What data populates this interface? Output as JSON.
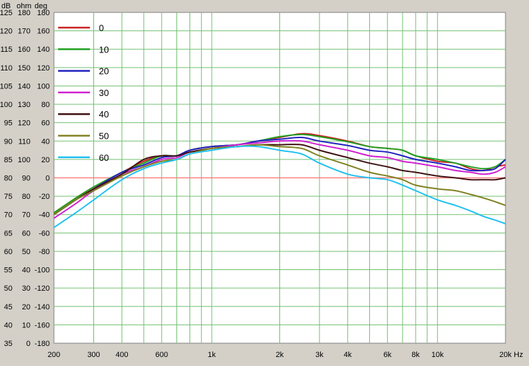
{
  "chart_data": {
    "type": "line",
    "title": "",
    "xscale": "log",
    "xlim": [
      200,
      20000
    ],
    "ylim_db": [
      35,
      125
    ],
    "grid": true,
    "legend_position": "top-left",
    "axis_headers": {
      "db": "dB",
      "ohm": "ohm",
      "deg": "deg"
    },
    "x_unit": "Hz",
    "x_ticks": [
      {
        "value": 200,
        "label": "200"
      },
      {
        "value": 300,
        "label": "300"
      },
      {
        "value": 400,
        "label": "400"
      },
      {
        "value": 600,
        "label": "600"
      },
      {
        "value": 1000,
        "label": "1k"
      },
      {
        "value": 2000,
        "label": "2k"
      },
      {
        "value": 3000,
        "label": "3k"
      },
      {
        "value": 4000,
        "label": "4k"
      },
      {
        "value": 6000,
        "label": "6k"
      },
      {
        "value": 8000,
        "label": "8k"
      },
      {
        "value": 10000,
        "label": "10k"
      },
      {
        "value": 20000,
        "label": "20k"
      }
    ],
    "y_ticks": [
      {
        "db": 125,
        "ohm": "180",
        "deg": "180"
      },
      {
        "db": 120,
        "ohm": "170",
        "deg": "160"
      },
      {
        "db": 115,
        "ohm": "160",
        "deg": "140"
      },
      {
        "db": 110,
        "ohm": "150",
        "deg": "120"
      },
      {
        "db": 105,
        "ohm": "140",
        "deg": "100"
      },
      {
        "db": 100,
        "ohm": "130",
        "deg": "80"
      },
      {
        "db": 95,
        "ohm": "120",
        "deg": "60"
      },
      {
        "db": 90,
        "ohm": "110",
        "deg": "40"
      },
      {
        "db": 85,
        "ohm": "100",
        "deg": "20"
      },
      {
        "db": 80,
        "ohm": "90",
        "deg": "0"
      },
      {
        "db": 75,
        "ohm": "80",
        "deg": "-20"
      },
      {
        "db": 70,
        "ohm": "70",
        "deg": "-40"
      },
      {
        "db": 65,
        "ohm": "60",
        "deg": "-60"
      },
      {
        "db": 60,
        "ohm": "50",
        "deg": "-80"
      },
      {
        "db": 55,
        "ohm": "40",
        "deg": "-100"
      },
      {
        "db": 50,
        "ohm": "30",
        "deg": "-120"
      },
      {
        "db": 45,
        "ohm": "20",
        "deg": "-140"
      },
      {
        "db": 40,
        "ohm": "10",
        "deg": "-160"
      },
      {
        "db": 35,
        "ohm": "0",
        "deg": "-180"
      }
    ],
    "reference_line": {
      "db": 80,
      "color": "#ff8080"
    },
    "series": [
      {
        "name": "0",
        "color": "#cc2020",
        "points": [
          [
            200,
            70.5
          ],
          [
            250,
            74.5
          ],
          [
            300,
            77.5
          ],
          [
            400,
            81.5
          ],
          [
            500,
            84.5
          ],
          [
            600,
            86
          ],
          [
            700,
            86
          ],
          [
            800,
            87.5
          ],
          [
            1000,
            88.5
          ],
          [
            1300,
            89
          ],
          [
            1600,
            90
          ],
          [
            2000,
            91
          ],
          [
            2500,
            92
          ],
          [
            3000,
            91.5
          ],
          [
            4000,
            90
          ],
          [
            5000,
            88.5
          ],
          [
            6000,
            88
          ],
          [
            7000,
            87.5
          ],
          [
            8000,
            86
          ],
          [
            10000,
            84.5
          ],
          [
            12000,
            84
          ],
          [
            14000,
            82.5
          ],
          [
            16000,
            82
          ],
          [
            18000,
            83
          ],
          [
            20000,
            83.5
          ]
        ]
      },
      {
        "name": "10",
        "color": "#20a020",
        "points": [
          [
            200,
            70.5
          ],
          [
            250,
            74.5
          ],
          [
            300,
            77.5
          ],
          [
            400,
            81.5
          ],
          [
            500,
            84
          ],
          [
            600,
            86
          ],
          [
            700,
            86
          ],
          [
            800,
            87.5
          ],
          [
            1000,
            88.5
          ],
          [
            1300,
            89
          ],
          [
            1600,
            90
          ],
          [
            2000,
            91.2
          ],
          [
            2500,
            91.8
          ],
          [
            3000,
            91.2
          ],
          [
            4000,
            89.8
          ],
          [
            5000,
            88.5
          ],
          [
            6000,
            88
          ],
          [
            7000,
            87.5
          ],
          [
            8000,
            86
          ],
          [
            10000,
            85
          ],
          [
            12000,
            84
          ],
          [
            14000,
            83
          ],
          [
            16000,
            82.5
          ],
          [
            18000,
            83
          ],
          [
            20000,
            85
          ]
        ]
      },
      {
        "name": "20",
        "color": "#2020c0",
        "points": [
          [
            200,
            70
          ],
          [
            250,
            74
          ],
          [
            300,
            77
          ],
          [
            400,
            81.5
          ],
          [
            500,
            83.5
          ],
          [
            600,
            85.5
          ],
          [
            700,
            86
          ],
          [
            800,
            87.5
          ],
          [
            1000,
            88.5
          ],
          [
            1300,
            89
          ],
          [
            1600,
            90
          ],
          [
            2000,
            90.5
          ],
          [
            2500,
            91
          ],
          [
            3000,
            90
          ],
          [
            4000,
            88.8
          ],
          [
            5000,
            87.5
          ],
          [
            6000,
            87
          ],
          [
            7000,
            86
          ],
          [
            8000,
            85
          ],
          [
            10000,
            84
          ],
          [
            12000,
            83
          ],
          [
            14000,
            82
          ],
          [
            16000,
            82
          ],
          [
            18000,
            82.5
          ],
          [
            20000,
            85
          ]
        ]
      },
      {
        "name": "30",
        "color": "#d020d0",
        "points": [
          [
            200,
            69
          ],
          [
            250,
            73
          ],
          [
            300,
            76.5
          ],
          [
            400,
            81
          ],
          [
            500,
            83
          ],
          [
            600,
            85
          ],
          [
            700,
            85.5
          ],
          [
            800,
            87
          ],
          [
            1000,
            88
          ],
          [
            1300,
            89
          ],
          [
            1600,
            89.5
          ],
          [
            2000,
            90
          ],
          [
            2500,
            90
          ],
          [
            3000,
            89
          ],
          [
            4000,
            87.5
          ],
          [
            5000,
            86
          ],
          [
            6000,
            85.5
          ],
          [
            7000,
            84.5
          ],
          [
            8000,
            84
          ],
          [
            10000,
            83
          ],
          [
            12000,
            82
          ],
          [
            14000,
            81.5
          ],
          [
            16000,
            81
          ],
          [
            18000,
            81.5
          ],
          [
            20000,
            83
          ]
        ]
      },
      {
        "name": "40",
        "color": "#401010",
        "points": [
          [
            200,
            70
          ],
          [
            250,
            74
          ],
          [
            300,
            77
          ],
          [
            400,
            81
          ],
          [
            500,
            85
          ],
          [
            600,
            86
          ],
          [
            700,
            86
          ],
          [
            800,
            87
          ],
          [
            1000,
            88
          ],
          [
            1300,
            88.5
          ],
          [
            1600,
            89
          ],
          [
            2000,
            89
          ],
          [
            2500,
            89
          ],
          [
            3000,
            87.5
          ],
          [
            4000,
            85.5
          ],
          [
            5000,
            84
          ],
          [
            6000,
            83
          ],
          [
            7000,
            82
          ],
          [
            8000,
            81.5
          ],
          [
            10000,
            80.5
          ],
          [
            12000,
            80
          ],
          [
            14000,
            79.5
          ],
          [
            16000,
            79.5
          ],
          [
            18000,
            79.5
          ],
          [
            20000,
            80
          ]
        ]
      },
      {
        "name": "50",
        "color": "#808020",
        "points": [
          [
            200,
            70
          ],
          [
            250,
            74
          ],
          [
            300,
            76.5
          ],
          [
            400,
            80.5
          ],
          [
            500,
            83
          ],
          [
            600,
            84.5
          ],
          [
            700,
            85
          ],
          [
            800,
            86.5
          ],
          [
            1000,
            88
          ],
          [
            1300,
            88.5
          ],
          [
            1600,
            89
          ],
          [
            2000,
            88.5
          ],
          [
            2500,
            88
          ],
          [
            3000,
            86
          ],
          [
            4000,
            83.5
          ],
          [
            5000,
            81.5
          ],
          [
            6000,
            80.5
          ],
          [
            7000,
            79.5
          ],
          [
            8000,
            78
          ],
          [
            10000,
            77
          ],
          [
            12000,
            76.5
          ],
          [
            14000,
            75.5
          ],
          [
            16000,
            74.5
          ],
          [
            18000,
            73.5
          ],
          [
            20000,
            72.5
          ]
        ]
      },
      {
        "name": "60",
        "color": "#20c0f0",
        "points": [
          [
            200,
            66.5
          ],
          [
            250,
            70.5
          ],
          [
            300,
            74
          ],
          [
            400,
            79.5
          ],
          [
            500,
            82.5
          ],
          [
            600,
            84
          ],
          [
            700,
            85
          ],
          [
            800,
            86.5
          ],
          [
            1000,
            87.5
          ],
          [
            1300,
            88.5
          ],
          [
            1600,
            88.5
          ],
          [
            2000,
            87.5
          ],
          [
            2500,
            86.5
          ],
          [
            3000,
            84
          ],
          [
            4000,
            81
          ],
          [
            5000,
            80
          ],
          [
            6000,
            79.5
          ],
          [
            7000,
            78
          ],
          [
            8000,
            76.5
          ],
          [
            10000,
            74
          ],
          [
            12000,
            72.5
          ],
          [
            14000,
            71
          ],
          [
            16000,
            69.5
          ],
          [
            18000,
            68.5
          ],
          [
            20000,
            67.5
          ]
        ]
      }
    ]
  }
}
